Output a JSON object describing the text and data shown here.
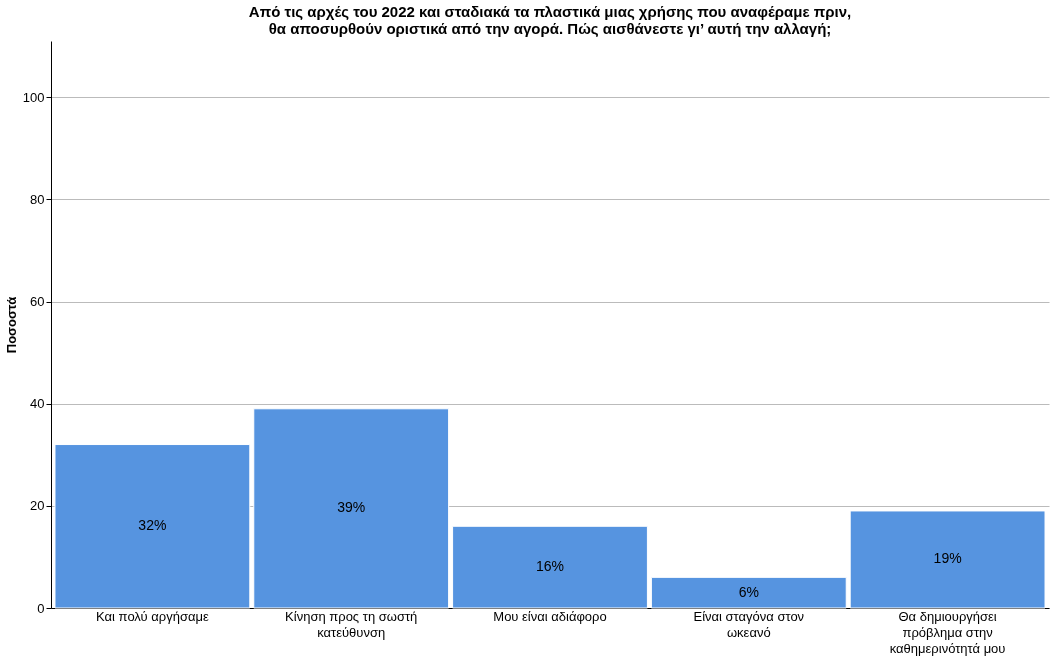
{
  "chart_data": {
    "type": "bar",
    "title": "Από τις αρχές του 2022 και σταδιακά τα πλαστικά μιας χρήσης που αναφέραμε πριν,\nθα αποσυρθούν οριστικά από την αγορά. Πώς αισθάνεστε γι’ αυτή την αλλαγή;",
    "ylabel": "Ποσοστά",
    "categories": [
      "Και πολύ αργήσαμε",
      "Κίνηση προς τη σωστή κατεύθυνση",
      "Μου είναι αδιάφορο",
      "Είναι σταγόνα στον ωκεανό",
      "Θα δημιουργήσει πρόβλημα στην καθημερινότητά μου"
    ],
    "values": [
      32,
      39,
      16,
      6,
      19
    ],
    "value_labels": [
      "32%",
      "39%",
      "16%",
      "6%",
      "19%"
    ],
    "color": "#5694e0",
    "ylim": [
      0,
      111
    ],
    "yticks": [
      0,
      20,
      40,
      60,
      80,
      100
    ],
    "grid": "y"
  }
}
